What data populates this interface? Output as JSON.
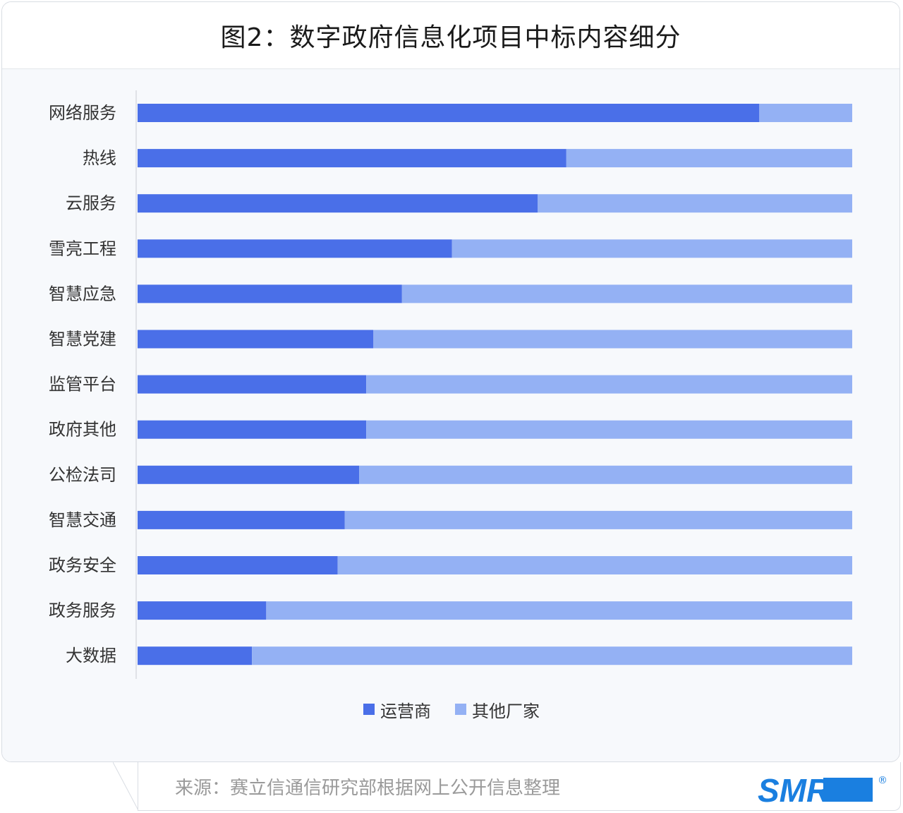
{
  "title": "图2：数字政府信息化项目中标内容细分",
  "chart_data": {
    "type": "bar",
    "orientation": "horizontal",
    "stacked": "100%",
    "categories": [
      "网络服务",
      "热线",
      "云服务",
      "雪亮工程",
      "智慧应急",
      "智慧党建",
      "监管平台",
      "政府其他",
      "公检法司",
      "智慧交通",
      "政务安全",
      "政务服务",
      "大数据"
    ],
    "series": [
      {
        "name": "运营商",
        "color": "#4a6fe8",
        "values": [
          87,
          60,
          56,
          44,
          37,
          33,
          32,
          32,
          31,
          29,
          28,
          18,
          16
        ]
      },
      {
        "name": "其他厂家",
        "color": "#94b1f4",
        "values": [
          13,
          40,
          44,
          56,
          63,
          67,
          68,
          68,
          69,
          71,
          72,
          82,
          84
        ]
      }
    ],
    "xlim": [
      0,
      100
    ],
    "grid": false,
    "legend_position": "bottom"
  },
  "footer": {
    "source": "来源：赛立信通信研究部根据网上公开信息整理",
    "logo_text": "SMR",
    "logo_mark": "®"
  }
}
